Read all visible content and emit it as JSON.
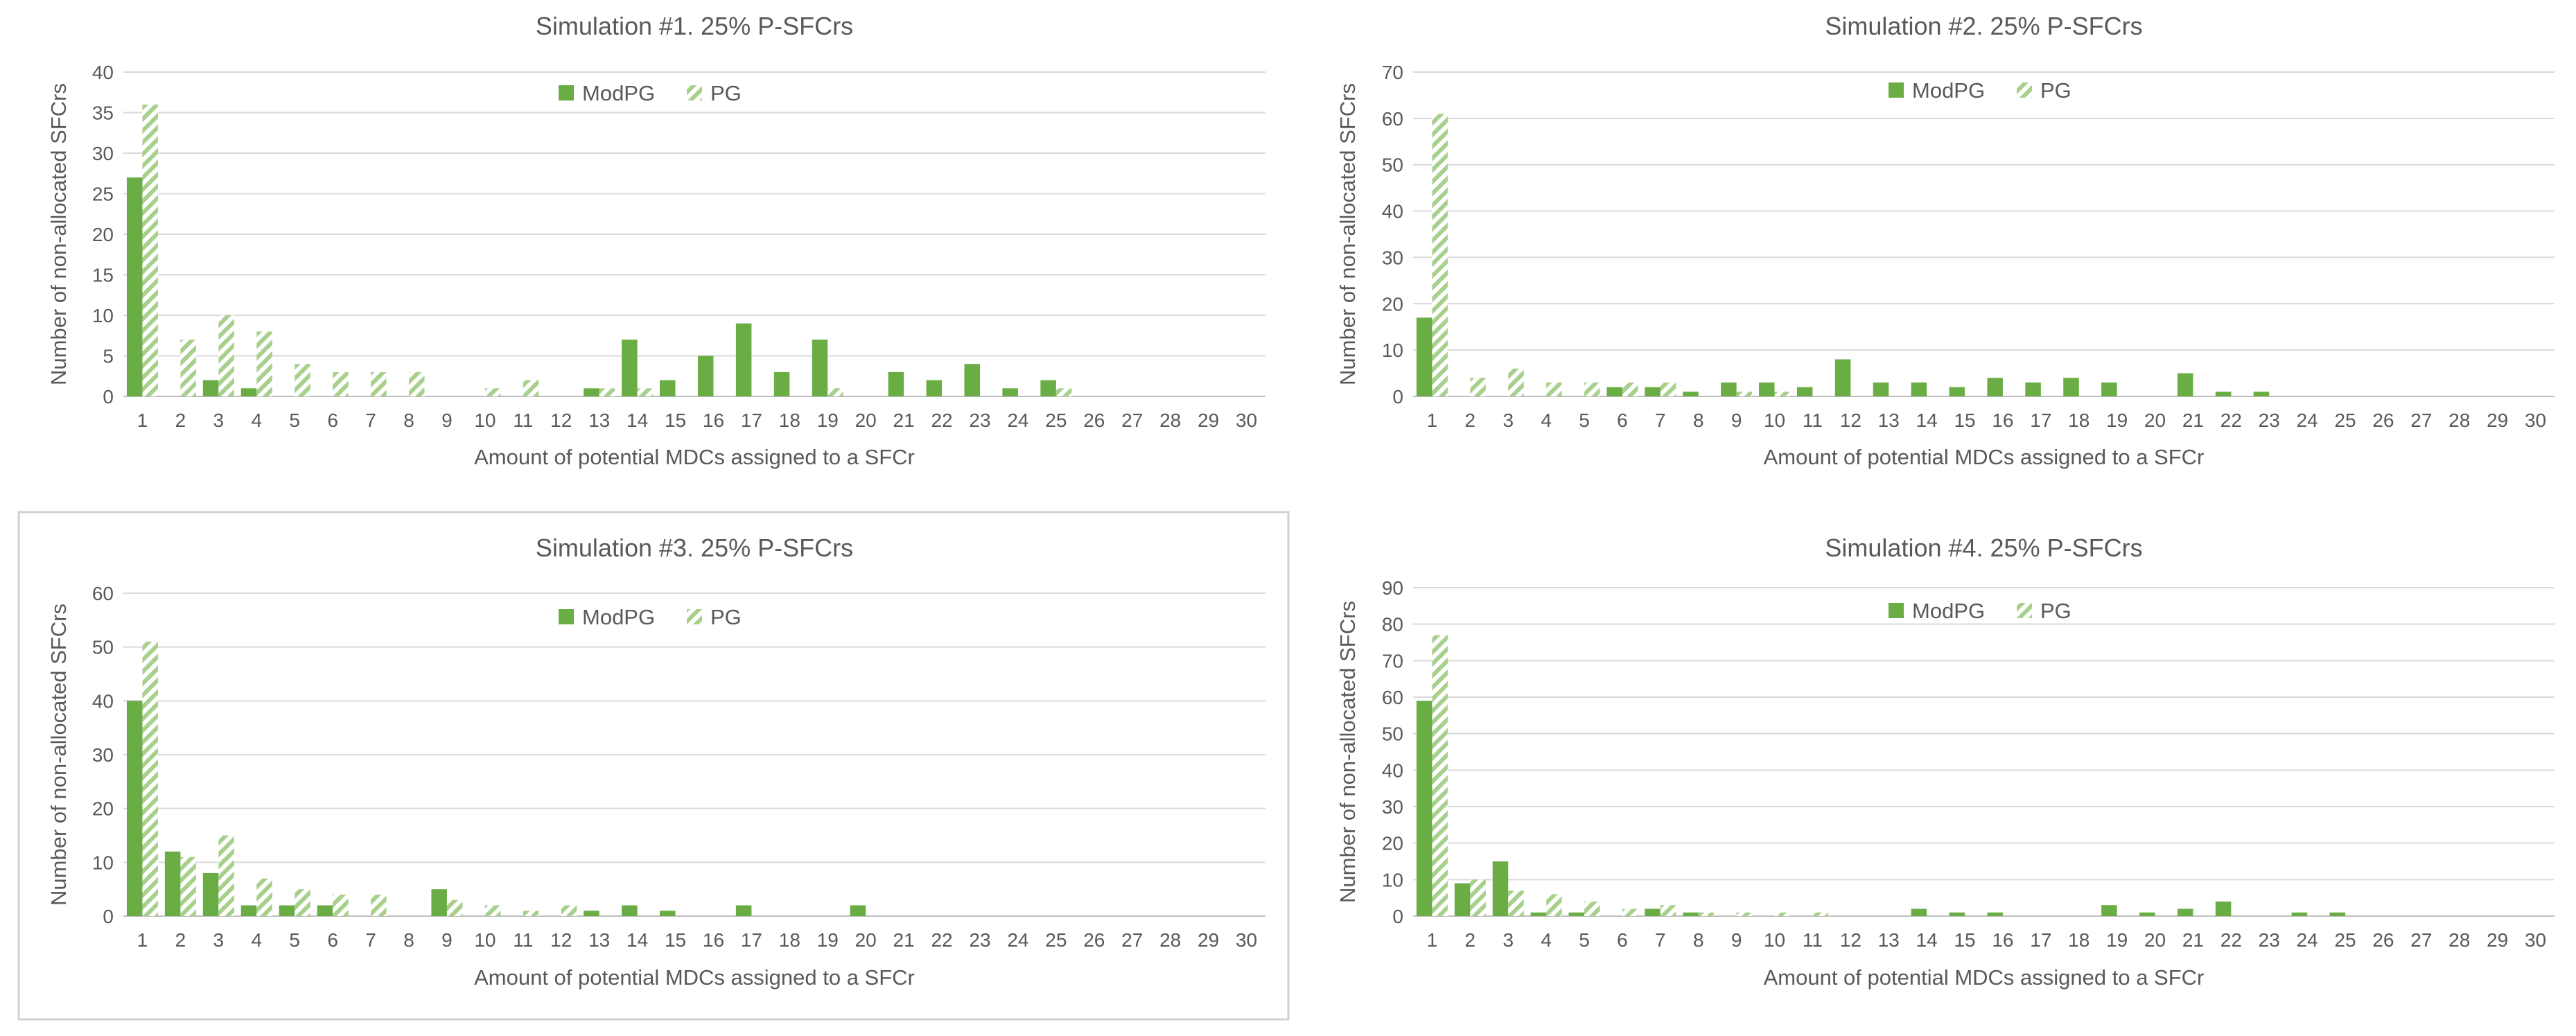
{
  "colors": {
    "modpg": "#6aad45",
    "pg": "#a8d08d",
    "grid": "#d9d9d9",
    "text": "#595959",
    "frame": "#d0d0d0"
  },
  "chart_data": [
    {
      "type": "bar",
      "title": "Simulation #1. 25% P-SFCrs",
      "xlabel": "Amount of potential MDCs assigned to a SFCr",
      "ylabel": "Number of non-allocated SFCrs",
      "ylim": [
        0,
        40
      ],
      "ystep": 5,
      "categories": [
        "1",
        "2",
        "3",
        "4",
        "5",
        "6",
        "7",
        "8",
        "9",
        "10",
        "11",
        "12",
        "13",
        "14",
        "15",
        "16",
        "17",
        "18",
        "19",
        "20",
        "21",
        "22",
        "23",
        "24",
        "25",
        "26",
        "27",
        "28",
        "29",
        "30"
      ],
      "legend": "top-center",
      "series": [
        {
          "name": "ModPG",
          "values": [
            27,
            0,
            2,
            1,
            0,
            0,
            0,
            0,
            0,
            0,
            0,
            0,
            1,
            7,
            2,
            5,
            9,
            3,
            7,
            0,
            3,
            2,
            4,
            1,
            2,
            0,
            0,
            0,
            0,
            0
          ]
        },
        {
          "name": "PG",
          "values": [
            36,
            7,
            10,
            8,
            4,
            3,
            3,
            3,
            0,
            1,
            2,
            0,
            1,
            1,
            0,
            0,
            0,
            0,
            1,
            0,
            0,
            0,
            0,
            0,
            1,
            0,
            0,
            0,
            0,
            0
          ]
        }
      ]
    },
    {
      "type": "bar",
      "title": "Simulation #2. 25% P-SFCrs",
      "xlabel": "Amount of potential MDCs assigned to a SFCr",
      "ylabel": "Number of non-allocated SFCrs",
      "ylim": [
        0,
        70
      ],
      "ystep": 10,
      "categories": [
        "1",
        "2",
        "3",
        "4",
        "5",
        "6",
        "7",
        "8",
        "9",
        "10",
        "11",
        "12",
        "13",
        "14",
        "15",
        "16",
        "17",
        "18",
        "19",
        "20",
        "21",
        "22",
        "23",
        "24",
        "25",
        "26",
        "27",
        "28",
        "29",
        "30"
      ],
      "legend": "top-center",
      "series": [
        {
          "name": "ModPG",
          "values": [
            17,
            0,
            0,
            0,
            0,
            2,
            2,
            1,
            3,
            3,
            2,
            8,
            3,
            3,
            2,
            4,
            3,
            4,
            3,
            0,
            5,
            1,
            1,
            0,
            0,
            0,
            0,
            0,
            0,
            0
          ]
        },
        {
          "name": "PG",
          "values": [
            61,
            4,
            6,
            3,
            3,
            3,
            3,
            0,
            1,
            1,
            0,
            0,
            0,
            0,
            0,
            0,
            0,
            0,
            0,
            0,
            0,
            0,
            0,
            0,
            0,
            0,
            0,
            0,
            0,
            0
          ]
        }
      ]
    },
    {
      "type": "bar",
      "title": "Simulation #3. 25% P-SFCrs",
      "xlabel": "Amount of potential MDCs assigned to a SFCr",
      "ylabel": "Number of non-allocated SFCrs",
      "ylim": [
        0,
        60
      ],
      "ystep": 10,
      "categories": [
        "1",
        "2",
        "3",
        "4",
        "5",
        "6",
        "7",
        "8",
        "9",
        "10",
        "11",
        "12",
        "13",
        "14",
        "15",
        "16",
        "17",
        "18",
        "19",
        "20",
        "21",
        "22",
        "23",
        "24",
        "25",
        "26",
        "27",
        "28",
        "29",
        "30"
      ],
      "legend": "top-center",
      "series": [
        {
          "name": "ModPG",
          "values": [
            40,
            12,
            8,
            2,
            2,
            2,
            0,
            0,
            5,
            0,
            0,
            0,
            1,
            2,
            1,
            0,
            2,
            0,
            0,
            2,
            0,
            0,
            0,
            0,
            0,
            0,
            0,
            0,
            0,
            0
          ]
        },
        {
          "name": "PG",
          "values": [
            51,
            11,
            15,
            7,
            5,
            4,
            4,
            0,
            3,
            2,
            1,
            2,
            0,
            0,
            0,
            0,
            0,
            0,
            0,
            0,
            0,
            0,
            0,
            0,
            0,
            0,
            0,
            0,
            0,
            0
          ]
        }
      ]
    },
    {
      "type": "bar",
      "title": "Simulation #4. 25% P-SFCrs",
      "xlabel": "Amount of potential MDCs assigned to a SFCr",
      "ylabel": "Number of non-allocated SFCrs",
      "ylim": [
        0,
        90
      ],
      "ystep": 10,
      "categories": [
        "1",
        "2",
        "3",
        "4",
        "5",
        "6",
        "7",
        "8",
        "9",
        "10",
        "11",
        "12",
        "13",
        "14",
        "15",
        "16",
        "17",
        "18",
        "19",
        "20",
        "21",
        "22",
        "23",
        "24",
        "25",
        "26",
        "27",
        "28",
        "29",
        "30"
      ],
      "legend": "top-center",
      "series": [
        {
          "name": "ModPG",
          "values": [
            59,
            9,
            15,
            1,
            1,
            0,
            2,
            1,
            0,
            0,
            0,
            0,
            0,
            2,
            1,
            1,
            0,
            0,
            3,
            1,
            2,
            4,
            0,
            1,
            1,
            0,
            0,
            0,
            0,
            0
          ]
        },
        {
          "name": "PG",
          "values": [
            77,
            10,
            7,
            6,
            4,
            2,
            3,
            1,
            1,
            1,
            1,
            0,
            0,
            0,
            0,
            0,
            0,
            0,
            0,
            0,
            0,
            0,
            0,
            0,
            0,
            0,
            0,
            0,
            0,
            0
          ]
        }
      ]
    }
  ]
}
